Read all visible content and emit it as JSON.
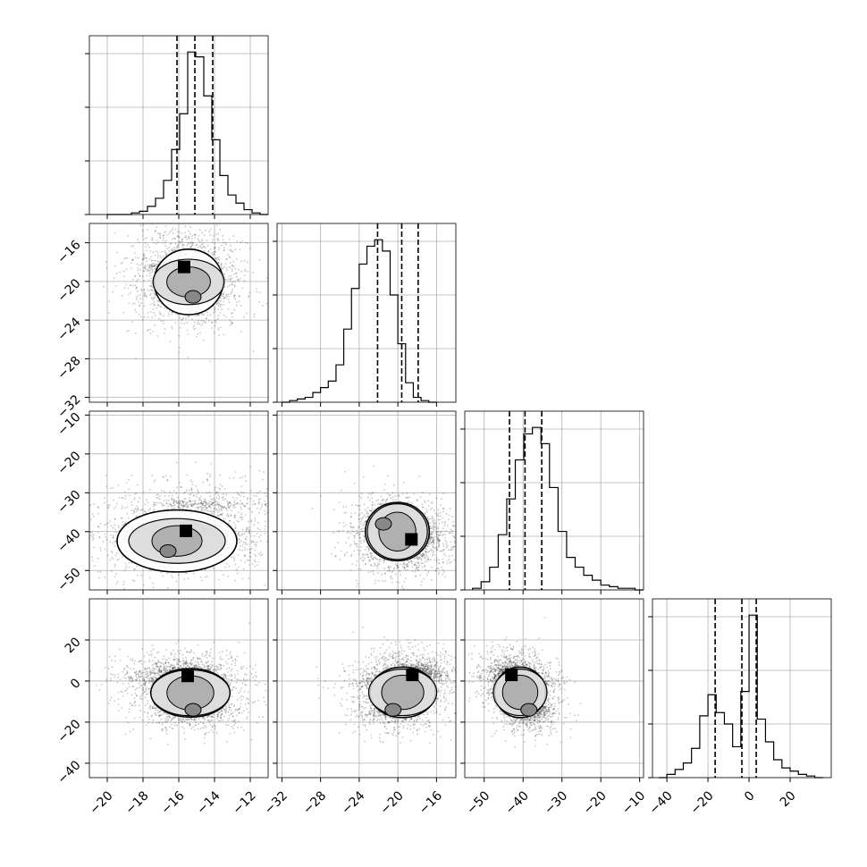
{
  "chart_data": {
    "type": "corner",
    "grid": true,
    "params": [
      {
        "range": [
          -21,
          -11
        ],
        "ticks": [
          -20,
          -18,
          -16,
          -14,
          -12
        ],
        "tick_labels": [
          "−20",
          "−18",
          "−16",
          "−14",
          "−12"
        ],
        "quantiles": [
          -16.1,
          -15.1,
          -14.1
        ],
        "hist": {
          "edges": [
            -20,
            20
          ],
          "counts": [
            0,
            0,
            0,
            1,
            2,
            5,
            10,
            21,
            40,
            62,
            100,
            97,
            73,
            46,
            24,
            12,
            7,
            3,
            1,
            0
          ]
        }
      },
      {
        "range": [
          -32.5,
          -14
        ],
        "ticks": [
          -32,
          -28,
          -24,
          -20,
          -16
        ],
        "tick_labels": [
          "−32",
          "−28",
          "−24",
          "−20",
          "−16"
        ],
        "quantiles": [
          -22.1,
          -19.6,
          -17.9
        ],
        "hist": {
          "edges": [
            -32,
            20
          ],
          "counts": [
            0,
            1,
            2,
            3,
            6,
            9,
            13,
            23,
            45,
            70,
            85,
            96,
            100,
            93,
            66,
            36,
            12,
            3,
            1,
            0
          ]
        }
      },
      {
        "range": [
          -55,
          -9
        ],
        "ticks": [
          -50,
          -40,
          -30,
          -20,
          -10
        ],
        "tick_labels": [
          "−50",
          "−40",
          "−30",
          "−20",
          "−10"
        ],
        "quantiles": [
          -43.5,
          -39.5,
          -35.2
        ],
        "hist": {
          "edges": [
            -53,
            20
          ],
          "counts": [
            1,
            5,
            14,
            34,
            56,
            80,
            96,
            100,
            90,
            63,
            36,
            20,
            14,
            9,
            6,
            3,
            2,
            1,
            1,
            0
          ]
        }
      },
      {
        "range": [
          -47,
          40
        ],
        "ticks": [
          -40,
          -20,
          0,
          20
        ],
        "tick_labels": [
          "−40",
          "−20",
          "0",
          "20"
        ],
        "quantiles": [
          -16.5,
          -3.5,
          3.5
        ],
        "hist": {
          "edges": [
            -44,
            20
          ],
          "counts": [
            0,
            2,
            5,
            9,
            18,
            38,
            51,
            40,
            33,
            19,
            53,
            100,
            36,
            22,
            11,
            6,
            4,
            2,
            1,
            0
          ]
        }
      }
    ],
    "row_tick_values": {
      "1": [
        -16,
        -20,
        -24,
        -28,
        -32
      ],
      "2": [
        -10,
        -20,
        -30,
        -40,
        -50
      ],
      "3": [
        20,
        0,
        -20,
        -40
      ]
    },
    "row_tick_labels": {
      "1": [
        "−16",
        "−20",
        "−24",
        "−28",
        "−32"
      ],
      "2": [
        "−10",
        "−20",
        "−30",
        "−40",
        "−50"
      ],
      "3": [
        "20",
        "0",
        "−20",
        "−40"
      ]
    },
    "pairs": [
      {
        "row": 1,
        "col": 0,
        "peaks": [
          {
            "x": -15.7,
            "y": -18.5,
            "w": 0.62
          },
          {
            "x": -15.2,
            "y": -21.6,
            "w": 0.3
          },
          {
            "x": -16.6,
            "y": -21.0,
            "w": 0.08
          }
        ],
        "spread": [
          [
            0.8,
            0.3
          ],
          [
            1.5,
            2.2
          ]
        ]
      },
      {
        "row": 2,
        "col": 0,
        "peaks": [
          {
            "x": -15.6,
            "y": -39.8,
            "w": 0.7
          },
          {
            "x": -16.6,
            "y": -45,
            "w": 0.15
          },
          {
            "x": -14.5,
            "y": -33,
            "w": 0.15
          }
        ],
        "spread": [
          [
            1.0,
            0.8
          ],
          [
            3.0,
            5.0
          ]
        ]
      },
      {
        "row": 2,
        "col": 1,
        "peaks": [
          {
            "x": -18.6,
            "y": -42,
            "w": 0.55
          },
          {
            "x": -21.5,
            "y": -38,
            "w": 0.3
          },
          {
            "x": -20.5,
            "y": -45,
            "w": 0.15
          }
        ],
        "spread": [
          [
            1.1,
            2.0
          ],
          [
            2.5,
            4.5
          ]
        ]
      },
      {
        "row": 3,
        "col": 0,
        "peaks": [
          {
            "x": -15.5,
            "y": 2.5,
            "w": 0.55
          },
          {
            "x": -15.2,
            "y": -14,
            "w": 0.35
          },
          {
            "x": -16.8,
            "y": 1,
            "w": 0.1
          }
        ],
        "spread": [
          [
            0.9,
            2.5
          ],
          [
            1.8,
            6.0
          ]
        ]
      },
      {
        "row": 3,
        "col": 1,
        "peaks": [
          {
            "x": -18.5,
            "y": 3,
            "w": 0.55
          },
          {
            "x": -20.5,
            "y": -14,
            "w": 0.35
          },
          {
            "x": -22,
            "y": 0,
            "w": 0.1
          }
        ],
        "spread": [
          [
            1.4,
            2.5
          ],
          [
            2.6,
            6.5
          ]
        ]
      },
      {
        "row": 3,
        "col": 2,
        "peaks": [
          {
            "x": -43,
            "y": 3,
            "w": 0.5
          },
          {
            "x": -38.5,
            "y": -14,
            "w": 0.4
          },
          {
            "x": -36,
            "y": 0,
            "w": 0.1
          }
        ],
        "spread": [
          [
            2.5,
            2.5
          ],
          [
            4.5,
            6.5
          ]
        ]
      }
    ]
  }
}
